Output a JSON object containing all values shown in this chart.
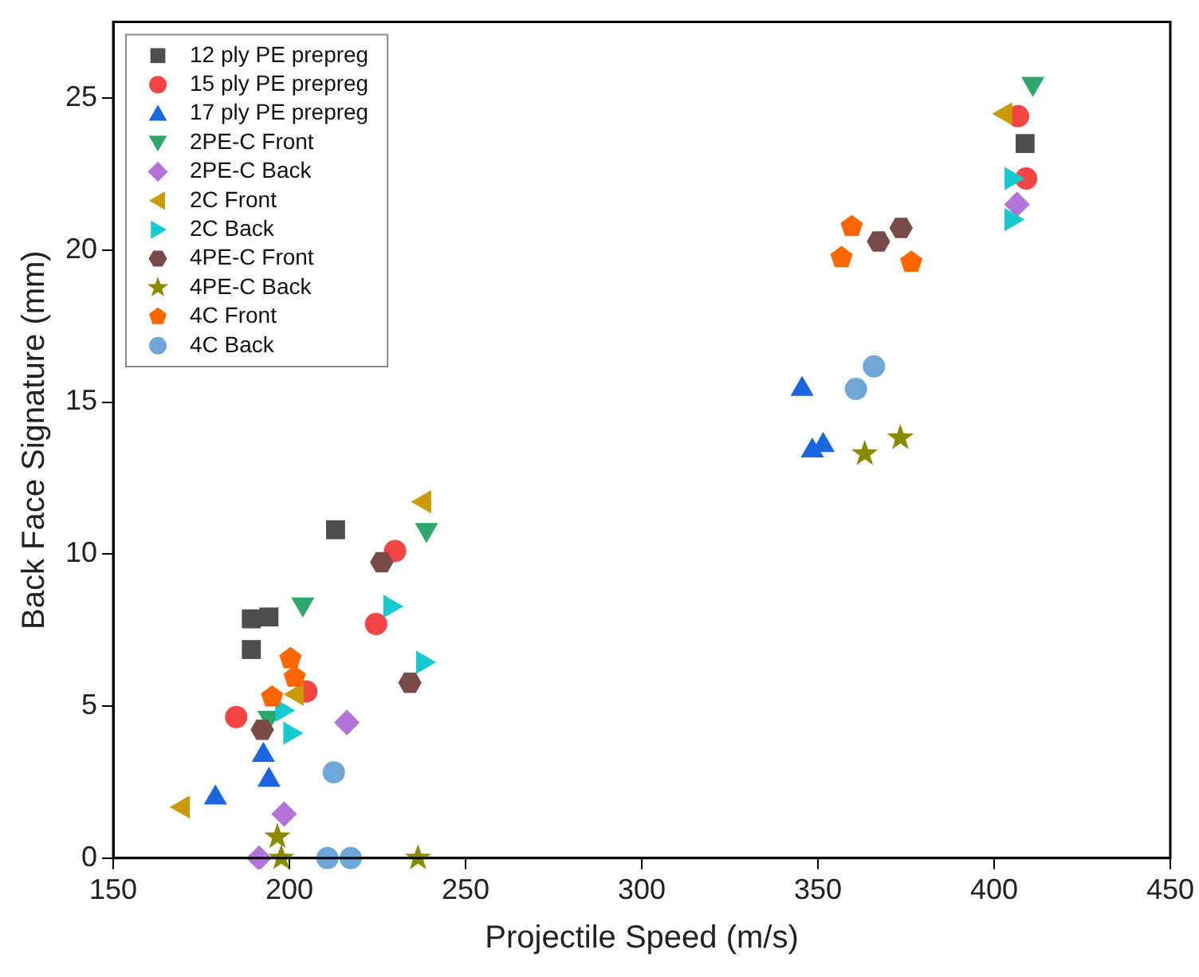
{
  "chart_data": {
    "type": "scatter",
    "xlabel": "Projectile Speed (m/s)",
    "ylabel": "Back Face Signature (mm)",
    "xlim": [
      150,
      450
    ],
    "xticks": [
      150,
      200,
      250,
      300,
      350,
      400,
      450
    ],
    "ylim": [
      0,
      27.5
    ],
    "yticks": [
      0,
      5,
      10,
      15,
      20,
      25
    ],
    "grid": false,
    "legend": "top left",
    "series": [
      {
        "name": "12 ply PE prepreg",
        "color": "#4d4d4d",
        "marker": "square",
        "x": [
          213.1,
          189.2,
          194.2,
          189.2,
          408.8
        ],
        "values": [
          10.8,
          7.87,
          7.93,
          6.86,
          23.5
        ]
      },
      {
        "name": "15 ply PE prepreg",
        "color": "#f44545",
        "marker": "circle",
        "x": [
          230,
          224.6,
          204.8,
          184.9,
          406.8,
          409.1
        ],
        "values": [
          10.1,
          7.7,
          5.48,
          4.64,
          24.4,
          22.35
        ]
      },
      {
        "name": "17 ply PE prepreg",
        "color": "#1a66e0",
        "marker": "triangle",
        "x": [
          192.6,
          194.2,
          179,
          345.5,
          348.4,
          351.5
        ],
        "values": [
          3.46,
          2.64,
          2.06,
          15.5,
          13.47,
          13.65
        ]
      },
      {
        "name": "2PE-C Front",
        "color": "#2ea86a",
        "marker": "triangle-down",
        "x": [
          238.9,
          203.8,
          194.2,
          411
        ],
        "values": [
          10.73,
          8.28,
          4.55,
          25.4
        ]
      },
      {
        "name": "2PE-C Back",
        "color": "#b373d9",
        "marker": "diamond",
        "x": [
          216.3,
          198.5,
          191.4,
          406.5
        ],
        "values": [
          4.46,
          1.45,
          0,
          21.5
        ]
      },
      {
        "name": "2C Front",
        "color": "#cc9a06",
        "marker": "triangle-left",
        "x": [
          237.7,
          201.5,
          169.2,
          402.6
        ],
        "values": [
          11.72,
          5.39,
          1.68,
          24.48
        ]
      },
      {
        "name": "2C Back",
        "color": "#17c9d1",
        "marker": "triangle-right",
        "x": [
          229.2,
          238.5,
          198.5,
          200.8,
          405.5,
          405.5
        ],
        "values": [
          8.28,
          6.44,
          4.86,
          4.11,
          22.35,
          21
        ]
      },
      {
        "name": "4PE-C Front",
        "color": "#7a4a48",
        "x": [
          226.2,
          234.2,
          192.3,
          373.6,
          367.2
        ],
        "values": [
          9.73,
          5.77,
          4.22,
          20.73,
          20.28
        ]
      },
      {
        "name": "4PE-C Back",
        "color": "#8b8b00",
        "marker": "star",
        "x": [
          196.6,
          197.7,
          236.5,
          363.3,
          373.4
        ],
        "values": [
          0.7,
          0,
          0,
          13.3,
          13.82
        ]
      },
      {
        "name": "4C Front",
        "color": "#ff6600",
        "x": [
          200.3,
          201.5,
          195.1,
          359.6,
          356.7,
          376.5
        ],
        "values": [
          6.56,
          5.95,
          5.3,
          20.77,
          19.75,
          19.6
        ]
      },
      {
        "name": "4C Back",
        "color": "#6fa6d8",
        "marker": "circle",
        "x": [
          212.6,
          210.8,
          217.4,
          365.9,
          360.8
        ],
        "values": [
          2.82,
          0,
          0,
          16.17,
          15.43
        ]
      }
    ]
  }
}
